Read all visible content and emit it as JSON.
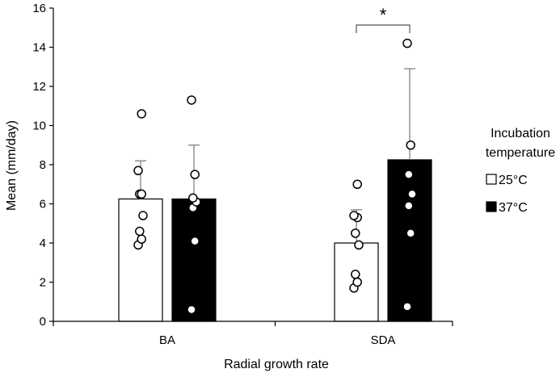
{
  "chart_data": {
    "type": "bar",
    "categories": [
      "BA",
      "SDA"
    ],
    "series": [
      {
        "name": "25°C",
        "color": "#ffffff",
        "means": [
          6.25,
          4.0
        ],
        "sd_upper": [
          8.2,
          5.7
        ],
        "points": [
          [
            3.9,
            4.2,
            4.6,
            5.4,
            6.5,
            6.5,
            7.7,
            10.6
          ],
          [
            1.7,
            2.0,
            2.4,
            3.9,
            4.5,
            5.3,
            5.4,
            7.0
          ]
        ]
      },
      {
        "name": "37°C",
        "color": "#000000",
        "means": [
          6.25,
          8.25
        ],
        "sd_upper": [
          9.0,
          12.9
        ],
        "points": [
          [
            0.6,
            4.1,
            5.8,
            6.1,
            6.3,
            7.5,
            11.3
          ],
          [
            0.75,
            4.5,
            5.9,
            6.5,
            7.5,
            9.0,
            14.2
          ]
        ]
      }
    ],
    "xlabel": "Radial growth rate",
    "ylabel": "Mean (mm/day)",
    "ylim": [
      0,
      16
    ],
    "yticks": [
      0,
      2,
      4,
      6,
      8,
      10,
      12,
      14,
      16
    ],
    "ytick_labels": [
      "0",
      "2",
      "4",
      "6",
      "8",
      "10",
      "12",
      "14",
      "16"
    ],
    "legend": {
      "title_line1": "Incubation",
      "title_line2": "temperature",
      "placement": "right"
    },
    "annotation": {
      "text": "*",
      "category": "SDA"
    },
    "grid": false
  }
}
